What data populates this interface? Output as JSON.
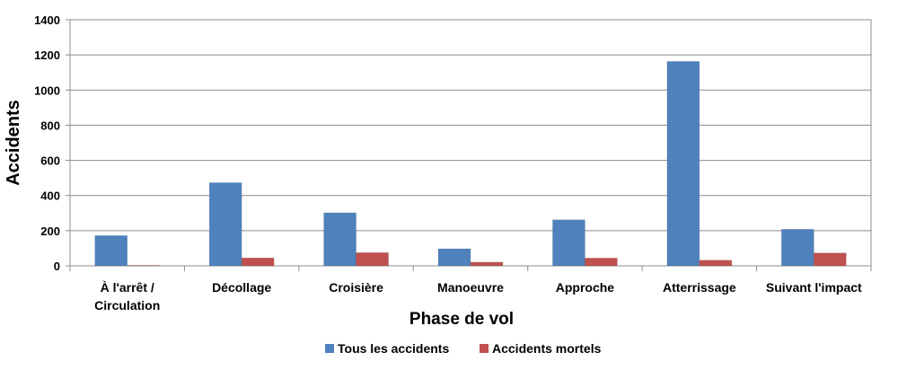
{
  "chart_data": {
    "type": "bar",
    "title": "",
    "xlabel": "Phase de vol",
    "ylabel": "Accidents",
    "ylim": [
      0,
      1400
    ],
    "yticks": [
      0,
      200,
      400,
      600,
      800,
      1000,
      1200,
      1400
    ],
    "grid": true,
    "legend_position": "bottom",
    "categories": [
      [
        "À l'arrêt /",
        "Circulation"
      ],
      [
        "Décollage"
      ],
      [
        "Croisière"
      ],
      [
        "Manoeuvre"
      ],
      [
        "Approche"
      ],
      [
        "Atterrissage"
      ],
      [
        "Suivant l'impact"
      ]
    ],
    "series": [
      {
        "name": "Tous les accidents",
        "color": "#4f81bd",
        "values": [
          172,
          473,
          302,
          97,
          262,
          1163,
          208
        ]
      },
      {
        "name": "Accidents mortels",
        "color": "#c0504d",
        "values": [
          3,
          45,
          75,
          21,
          44,
          32,
          73
        ]
      }
    ]
  }
}
